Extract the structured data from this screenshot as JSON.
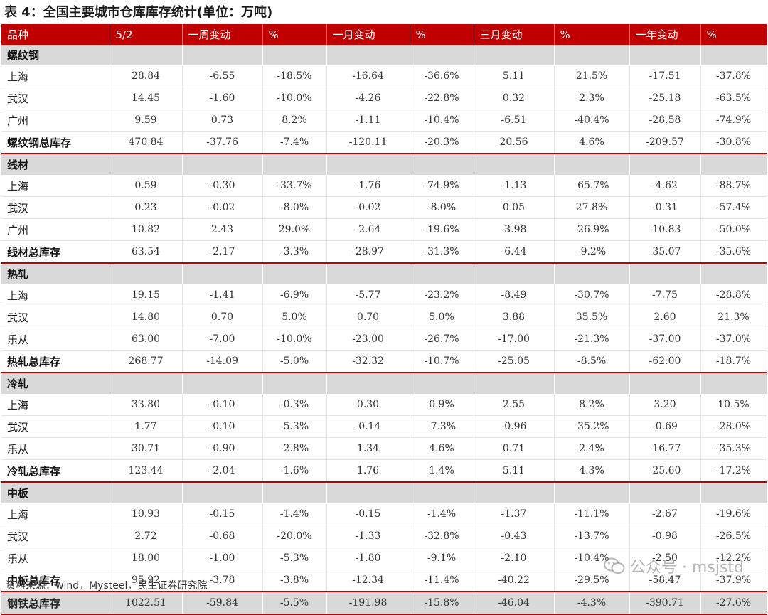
{
  "title": "表 4：全国主要城市仓库库存统计(单位：万吨)",
  "columns": [
    "品种",
    "5/2",
    "一周变动",
    "%",
    "一月变动",
    "%",
    "三月变动",
    "%",
    "一年变动",
    "%"
  ],
  "groups": [
    {
      "name": "螺纹钢",
      "rows": [
        {
          "name": "上海",
          "values": [
            "28.84",
            "-6.55",
            "-18.5%",
            "-16.64",
            "-36.6%",
            "5.11",
            "21.5%",
            "-17.51",
            "-37.8%"
          ]
        },
        {
          "name": "武汉",
          "values": [
            "14.45",
            "-1.60",
            "-10.0%",
            "-4.26",
            "-22.8%",
            "0.32",
            "2.3%",
            "-25.18",
            "-63.5%"
          ]
        },
        {
          "name": "广州",
          "values": [
            "9.59",
            "0.73",
            "8.2%",
            "-1.11",
            "-10.4%",
            "-6.51",
            "-40.4%",
            "-28.58",
            "-74.9%"
          ]
        }
      ],
      "total": {
        "name": "螺纹钢总库存",
        "values": [
          "470.84",
          "-37.76",
          "-7.4%",
          "-120.11",
          "-20.3%",
          "20.56",
          "4.6%",
          "-209.57",
          "-30.8%"
        ]
      }
    },
    {
      "name": "线材",
      "rows": [
        {
          "name": "上海",
          "values": [
            "0.59",
            "-0.30",
            "-33.7%",
            "-1.76",
            "-74.9%",
            "-1.13",
            "-65.7%",
            "-4.62",
            "-88.7%"
          ]
        },
        {
          "name": "武汉",
          "values": [
            "0.23",
            "-0.02",
            "-8.0%",
            "-0.02",
            "-8.0%",
            "0.05",
            "27.8%",
            "-0.31",
            "-57.4%"
          ]
        },
        {
          "name": "广州",
          "values": [
            "10.82",
            "2.43",
            "29.0%",
            "-2.64",
            "-19.6%",
            "-3.98",
            "-26.9%",
            "-10.83",
            "-50.0%"
          ]
        }
      ],
      "total": {
        "name": "线材总库存",
        "values": [
          "63.54",
          "-2.17",
          "-3.3%",
          "-28.97",
          "-31.3%",
          "-6.44",
          "-9.2%",
          "-35.07",
          "-35.6%"
        ]
      }
    },
    {
      "name": "热轧",
      "rows": [
        {
          "name": "上海",
          "values": [
            "19.15",
            "-1.41",
            "-6.9%",
            "-5.77",
            "-23.2%",
            "-8.49",
            "-30.7%",
            "-7.75",
            "-28.8%"
          ]
        },
        {
          "name": "武汉",
          "values": [
            "14.80",
            "0.70",
            "5.0%",
            "0.70",
            "5.0%",
            "3.88",
            "35.5%",
            "2.60",
            "21.3%"
          ]
        },
        {
          "name": "乐从",
          "values": [
            "63.00",
            "-7.00",
            "-10.0%",
            "-23.00",
            "-26.7%",
            "-17.00",
            "-21.3%",
            "-37.00",
            "-37.0%"
          ]
        }
      ],
      "total": {
        "name": "热轧总库存",
        "values": [
          "268.77",
          "-14.09",
          "-5.0%",
          "-32.32",
          "-10.7%",
          "-25.05",
          "-8.5%",
          "-62.00",
          "-18.7%"
        ]
      }
    },
    {
      "name": "冷轧",
      "rows": [
        {
          "name": "上海",
          "values": [
            "33.80",
            "-0.10",
            "-0.3%",
            "0.30",
            "0.9%",
            "2.55",
            "8.2%",
            "3.20",
            "10.5%"
          ]
        },
        {
          "name": "武汉",
          "values": [
            "1.77",
            "-0.10",
            "-5.3%",
            "-0.14",
            "-7.3%",
            "-0.96",
            "-35.2%",
            "-0.69",
            "-28.0%"
          ]
        },
        {
          "name": "乐从",
          "values": [
            "30.71",
            "-0.90",
            "-2.8%",
            "1.34",
            "4.6%",
            "0.71",
            "2.4%",
            "-16.77",
            "-35.3%"
          ]
        }
      ],
      "total": {
        "name": "冷轧总库存",
        "values": [
          "123.44",
          "-2.04",
          "-1.6%",
          "1.76",
          "1.4%",
          "5.11",
          "4.3%",
          "-25.60",
          "-17.2%"
        ]
      }
    },
    {
      "name": "中板",
      "rows": [
        {
          "name": "上海",
          "values": [
            "10.93",
            "-0.15",
            "-1.4%",
            "-0.15",
            "-1.4%",
            "-1.37",
            "-11.1%",
            "-2.67",
            "-19.6%"
          ]
        },
        {
          "name": "武汉",
          "values": [
            "2.72",
            "-0.68",
            "-20.0%",
            "-1.33",
            "-32.8%",
            "-0.43",
            "-13.7%",
            "-0.98",
            "-26.5%"
          ]
        },
        {
          "name": "乐从",
          "values": [
            "18.00",
            "-1.00",
            "-5.3%",
            "-1.80",
            "-9.1%",
            "-2.10",
            "-10.4%",
            "-2.50",
            "-12.2%"
          ]
        }
      ],
      "total": {
        "name": "中板总库存",
        "values": [
          "95.92",
          "-3.78",
          "-3.8%",
          "-12.34",
          "-11.4%",
          "-40.22",
          "-29.5%",
          "-58.47",
          "-37.9%"
        ]
      }
    }
  ],
  "grand_total": {
    "name": "钢铁总库存",
    "values": [
      "1022.51",
      "-59.84",
      "-5.5%",
      "-191.98",
      "-15.8%",
      "-46.04",
      "-4.3%",
      "-390.71",
      "-27.6%"
    ]
  },
  "source": "资料来源：wind，Mysteel，民生证券研究院",
  "watermark": "公众号 · msjstd",
  "colors": {
    "header_bg": "#c00000",
    "category_bg": "#d9d9d9",
    "divider": "#c00000"
  }
}
